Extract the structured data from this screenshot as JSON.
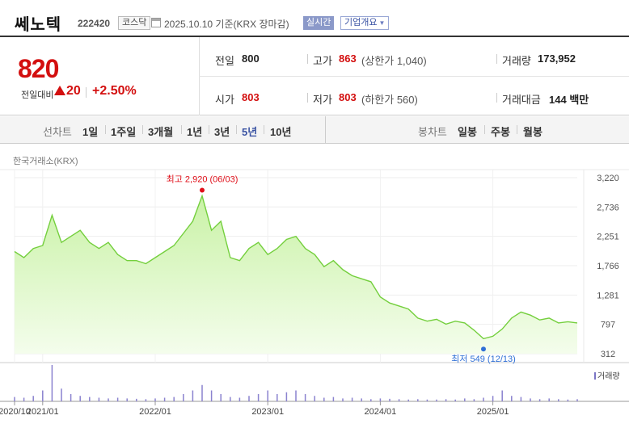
{
  "header": {
    "name": "쎄노텍",
    "code": "222420",
    "market": "코스닥",
    "date": "2025.10.10",
    "date_basis": "기준(KRX 장마감)",
    "realtime_label": "실시간",
    "company_info_label": "기업개요"
  },
  "quote": {
    "price": "820",
    "change_label": "전일대비",
    "change": "20",
    "change_pct": "+2.50%",
    "prev_close_label": "전일",
    "prev_close": "800",
    "high_label": "고가",
    "high": "863",
    "upper_limit_text": "(상한가 1,040)",
    "volume_label": "거래량",
    "volume": "173,952",
    "open_label": "시가",
    "open": "803",
    "low_label": "저가",
    "low": "803",
    "lower_limit_text": "(하한가 560)",
    "trade_value_label": "거래대금",
    "trade_value": "144",
    "trade_value_unit": "백만"
  },
  "periods": {
    "line_label": "선차트",
    "items": [
      "1일",
      "1주일",
      "3개월",
      "1년",
      "3년",
      "5년",
      "10년"
    ],
    "selected": "5년",
    "candle_label": "봉차트",
    "candle_items": [
      "일봉",
      "주봉",
      "월봉"
    ]
  },
  "chart_data": {
    "type": "area",
    "source_label": "한국거래소(KRX)",
    "y_ticks": [
      3220,
      2736,
      2251,
      1766,
      1281,
      797,
      312
    ],
    "y_tick_labels": [
      "3,220",
      "2,736",
      "2,251",
      "1,766",
      "1,281",
      "797",
      "312"
    ],
    "ylim": [
      312,
      3220
    ],
    "x_tick_labels": [
      "2020/10",
      "2021/01",
      "2022/01",
      "2023/01",
      "2024/01",
      "2025/01"
    ],
    "x_ticks": [
      "2020-10",
      "2021-01",
      "2022-01",
      "2023-01",
      "2024-01",
      "2025-01"
    ],
    "xlim": [
      "2020-10",
      "2025-10"
    ],
    "max_annotation": "최고 2,920 (06/03)",
    "min_annotation": "최저 549 (12/13)",
    "max_point": {
      "date": "2022-06",
      "value": 2920
    },
    "min_point": {
      "date": "2024-12",
      "value": 549
    },
    "volume_legend": "거래량",
    "series": [
      {
        "dates": [
          "2020-10",
          "2020-11",
          "2020-12",
          "2021-01",
          "2021-02",
          "2021-03",
          "2021-04",
          "2021-05",
          "2021-06",
          "2021-07",
          "2021-08",
          "2021-09",
          "2021-10",
          "2021-11",
          "2021-12",
          "2022-01",
          "2022-02",
          "2022-03",
          "2022-04",
          "2022-05",
          "2022-06",
          "2022-07",
          "2022-08",
          "2022-09",
          "2022-10",
          "2022-11",
          "2022-12",
          "2023-01",
          "2023-02",
          "2023-03",
          "2023-04",
          "2023-05",
          "2023-06",
          "2023-07",
          "2023-08",
          "2023-09",
          "2023-10",
          "2023-11",
          "2023-12",
          "2024-01",
          "2024-02",
          "2024-03",
          "2024-04",
          "2024-05",
          "2024-06",
          "2024-07",
          "2024-08",
          "2024-09",
          "2024-10",
          "2024-11",
          "2024-12",
          "2025-01",
          "2025-02",
          "2025-03",
          "2025-04",
          "2025-05",
          "2025-06",
          "2025-07",
          "2025-08",
          "2025-09",
          "2025-10"
        ],
        "values": [
          2000,
          1900,
          2050,
          2100,
          2600,
          2150,
          2250,
          2350,
          2150,
          2050,
          2150,
          1950,
          1850,
          1850,
          1800,
          1900,
          2000,
          2100,
          2300,
          2500,
          2920,
          2350,
          2500,
          1900,
          1850,
          2050,
          2150,
          1950,
          2050,
          2200,
          2250,
          2050,
          1950,
          1750,
          1850,
          1700,
          1600,
          1550,
          1500,
          1250,
          1150,
          1100,
          1050,
          900,
          850,
          880,
          800,
          850,
          820,
          700,
          560,
          600,
          720,
          900,
          1000,
          950,
          870,
          900,
          820,
          840,
          820
        ]
      }
    ],
    "volume": {
      "dates": [
        "2020-10",
        "2020-11",
        "2020-12",
        "2021-01",
        "2021-02",
        "2021-03",
        "2021-04",
        "2021-05",
        "2021-06",
        "2021-07",
        "2021-08",
        "2021-09",
        "2021-10",
        "2021-11",
        "2021-12",
        "2022-01",
        "2022-02",
        "2022-03",
        "2022-04",
        "2022-05",
        "2022-06",
        "2022-07",
        "2022-08",
        "2022-09",
        "2022-10",
        "2022-11",
        "2022-12",
        "2023-01",
        "2023-02",
        "2023-03",
        "2023-04",
        "2023-05",
        "2023-06",
        "2023-07",
        "2023-08",
        "2023-09",
        "2023-10",
        "2023-11",
        "2023-12",
        "2024-01",
        "2024-02",
        "2024-03",
        "2024-04",
        "2024-05",
        "2024-06",
        "2024-07",
        "2024-08",
        "2024-09",
        "2024-10",
        "2024-11",
        "2024-12",
        "2025-01",
        "2025-02",
        "2025-03",
        "2025-04",
        "2025-05",
        "2025-06",
        "2025-07",
        "2025-08",
        "2025-09",
        "2025-10"
      ],
      "values": [
        0.12,
        0.1,
        0.15,
        0.3,
        1.0,
        0.35,
        0.2,
        0.15,
        0.12,
        0.1,
        0.08,
        0.1,
        0.08,
        0.07,
        0.06,
        0.08,
        0.1,
        0.12,
        0.2,
        0.3,
        0.45,
        0.3,
        0.2,
        0.12,
        0.1,
        0.15,
        0.2,
        0.3,
        0.2,
        0.25,
        0.3,
        0.2,
        0.15,
        0.1,
        0.12,
        0.08,
        0.1,
        0.08,
        0.06,
        0.08,
        0.07,
        0.06,
        0.05,
        0.06,
        0.05,
        0.05,
        0.06,
        0.05,
        0.08,
        0.06,
        0.1,
        0.15,
        0.3,
        0.15,
        0.12,
        0.08,
        0.06,
        0.08,
        0.06,
        0.05,
        0.06
      ]
    }
  }
}
